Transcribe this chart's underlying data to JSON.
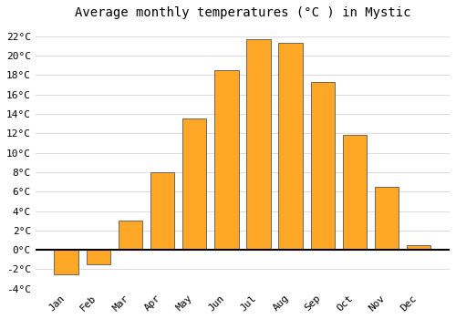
{
  "title": "Average monthly temperatures (°C ) in Mystic",
  "months": [
    "Jan",
    "Feb",
    "Mar",
    "Apr",
    "May",
    "Jun",
    "Jul",
    "Aug",
    "Sep",
    "Oct",
    "Nov",
    "Dec"
  ],
  "values": [
    -2.5,
    -1.5,
    3.0,
    8.0,
    13.5,
    18.5,
    21.7,
    21.3,
    17.3,
    11.8,
    6.5,
    0.5
  ],
  "bar_color": "#FFA726",
  "bar_edge_color": "#555555",
  "ylim": [
    -4,
    23
  ],
  "yticks": [
    -4,
    -2,
    0,
    2,
    4,
    6,
    8,
    10,
    12,
    14,
    16,
    18,
    20,
    22
  ],
  "grid_color": "#dddddd",
  "background_color": "#ffffff",
  "title_fontsize": 10,
  "tick_fontsize": 8,
  "zero_line_color": "#000000",
  "bar_width": 0.75
}
